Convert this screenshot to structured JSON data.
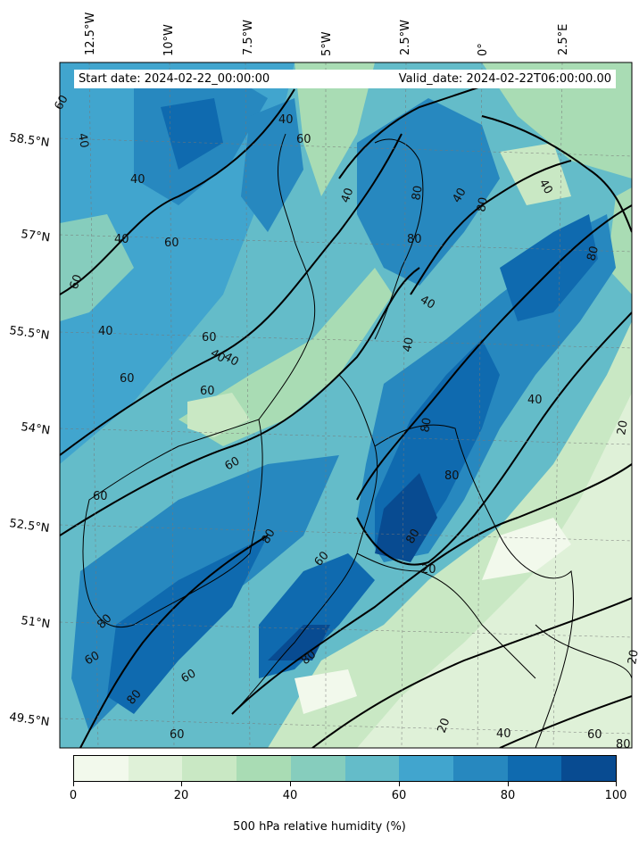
{
  "header": {
    "start_date": "Start date: 2024-02-22_00:00:00",
    "valid_date": "Valid_date: 2024-02-22T06:00:00.00"
  },
  "axes": {
    "lon_labels": [
      "12.5°W",
      "10°W",
      "7.5°W",
      "5°W",
      "2.5°W",
      "0°",
      "2.5°E"
    ],
    "lat_labels": [
      "58.5°N",
      "57°N",
      "55.5°N",
      "54°N",
      "52.5°N",
      "51°N",
      "49.5°N"
    ]
  },
  "contour_labels": [
    "60",
    "40",
    "40",
    "60",
    "40",
    "40",
    "40",
    "60",
    "80",
    "60",
    "40",
    "40",
    "60",
    "60",
    "40",
    "60",
    "80",
    "60",
    "80",
    "60",
    "40",
    "20",
    "40",
    "80",
    "80",
    "60",
    "80",
    "60",
    "80",
    "60",
    "40",
    "40",
    "80",
    "80",
    "20",
    "40",
    "20",
    "40",
    "60",
    "80",
    "60",
    "80",
    "80",
    "20"
  ],
  "colorbar": {
    "title": "500 hPa relative humidity (%)",
    "ticks": [
      "0",
      "20",
      "40",
      "60",
      "80",
      "100"
    ],
    "colors": [
      "#f2f9ec",
      "#dff1d8",
      "#c9e8c4",
      "#a9dcb4",
      "#86cdbd",
      "#64bcc9",
      "#41a5ce",
      "#2788bf",
      "#0f6aaf",
      "#084b91"
    ]
  }
}
